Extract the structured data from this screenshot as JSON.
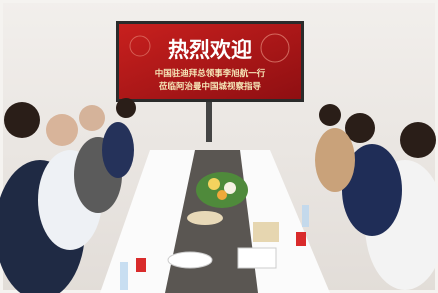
{
  "screen": {
    "title": "热烈欢迎",
    "lines": [
      "中国驻迪拜总领事李旭航一行",
      "莅临阿治曼中国城视察指导"
    ]
  }
}
